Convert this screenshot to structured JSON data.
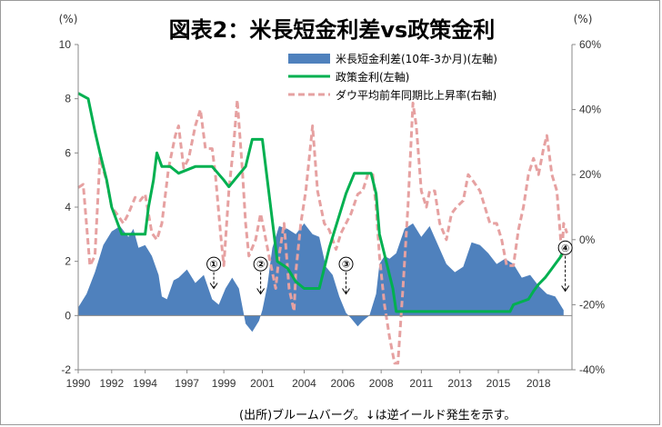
{
  "chart_data": {
    "type": "area+line",
    "title": "図表2：米長短金利差vs政策金利",
    "left_axis": {
      "unit": "(%)",
      "ylim": [
        -2,
        10
      ],
      "ticks": [
        -2,
        0,
        2,
        4,
        6,
        8,
        10
      ]
    },
    "right_axis": {
      "unit": "(%)",
      "ylim": [
        -40,
        60
      ],
      "ticks": [
        "-40%",
        "-20%",
        "0%",
        "20%",
        "40%",
        "60%"
      ],
      "tick_values": [
        -40,
        -20,
        0,
        20,
        40,
        60
      ]
    },
    "x_axis": {
      "xlim": [
        1990,
        2019.5
      ],
      "tick_labels": [
        "1990",
        "1992",
        "1994",
        "1997",
        "1999",
        "2001",
        "2004",
        "2006",
        "2008",
        "2011",
        "2013",
        "2015",
        "2018"
      ],
      "tick_positions": [
        1990,
        1992,
        1994,
        1996.5,
        1998.7,
        2001,
        2003.5,
        2005.8,
        2008.1,
        2010.5,
        2012.8,
        2015.1,
        2017.5
      ]
    },
    "series": [
      {
        "name": "米長短金利差(10年-3か月)(左軸)",
        "type": "area",
        "axis": "left",
        "color": "#4f81bd",
        "points": [
          [
            1990,
            0.3
          ],
          [
            1990.5,
            0.8
          ],
          [
            1991,
            1.6
          ],
          [
            1991.5,
            2.6
          ],
          [
            1992,
            3.1
          ],
          [
            1992.5,
            3.3
          ],
          [
            1993,
            2.9
          ],
          [
            1993.3,
            3.2
          ],
          [
            1993.6,
            2.5
          ],
          [
            1994,
            2.6
          ],
          [
            1994.4,
            2.2
          ],
          [
            1994.8,
            1.5
          ],
          [
            1995,
            0.7
          ],
          [
            1995.3,
            0.6
          ],
          [
            1995.7,
            1.3
          ],
          [
            1996,
            1.4
          ],
          [
            1996.5,
            1.7
          ],
          [
            1997,
            1.2
          ],
          [
            1997.5,
            1.5
          ],
          [
            1998,
            0.6
          ],
          [
            1998.4,
            0.4
          ],
          [
            1998.8,
            1.0
          ],
          [
            1999.2,
            1.4
          ],
          [
            1999.6,
            1.0
          ],
          [
            2000,
            -0.3
          ],
          [
            2000.4,
            -0.6
          ],
          [
            2000.8,
            -0.2
          ],
          [
            2001,
            0.2
          ],
          [
            2001.3,
            1.1
          ],
          [
            2001.6,
            2.5
          ],
          [
            2002,
            3.3
          ],
          [
            2002.5,
            3.2
          ],
          [
            2003,
            3.0
          ],
          [
            2003.5,
            3.4
          ],
          [
            2004,
            3.0
          ],
          [
            2004.4,
            2.9
          ],
          [
            2004.8,
            1.8
          ],
          [
            2005.2,
            1.5
          ],
          [
            2005.6,
            0.7
          ],
          [
            2006,
            0.1
          ],
          [
            2006.3,
            -0.1
          ],
          [
            2006.7,
            -0.4
          ],
          [
            2007,
            -0.2
          ],
          [
            2007.4,
            0.0
          ],
          [
            2007.8,
            0.8
          ],
          [
            2008,
            1.9
          ],
          [
            2008.3,
            2.2
          ],
          [
            2008.6,
            2.1
          ],
          [
            2009,
            2.3
          ],
          [
            2009.5,
            3.2
          ],
          [
            2010,
            3.4
          ],
          [
            2010.5,
            2.9
          ],
          [
            2011,
            3.3
          ],
          [
            2011.5,
            2.6
          ],
          [
            2012,
            1.9
          ],
          [
            2012.5,
            1.6
          ],
          [
            2013,
            1.8
          ],
          [
            2013.5,
            2.7
          ],
          [
            2014,
            2.6
          ],
          [
            2014.5,
            2.3
          ],
          [
            2015,
            1.9
          ],
          [
            2015.5,
            2.1
          ],
          [
            2016,
            1.9
          ],
          [
            2016.5,
            1.4
          ],
          [
            2017,
            1.5
          ],
          [
            2017.5,
            1.1
          ],
          [
            2018,
            0.8
          ],
          [
            2018.5,
            0.7
          ],
          [
            2019,
            0.2
          ]
        ]
      },
      {
        "name": "政策金利(左軸)",
        "type": "step-line",
        "axis": "left",
        "color": "#00b050",
        "points": [
          [
            1990,
            8.2
          ],
          [
            1990.6,
            8.0
          ],
          [
            1991,
            6.8
          ],
          [
            1991.3,
            6.0
          ],
          [
            1991.7,
            5.0
          ],
          [
            1992,
            4.0
          ],
          [
            1992.3,
            3.5
          ],
          [
            1992.6,
            3.0
          ],
          [
            1993,
            3.0
          ],
          [
            1994,
            3.0
          ],
          [
            1994.2,
            4.0
          ],
          [
            1994.5,
            5.0
          ],
          [
            1994.7,
            6.0
          ],
          [
            1995,
            5.5
          ],
          [
            1995.5,
            5.5
          ],
          [
            1996,
            5.25
          ],
          [
            1997,
            5.5
          ],
          [
            1998,
            5.5
          ],
          [
            1998.7,
            5.0
          ],
          [
            1999,
            4.75
          ],
          [
            1999.6,
            5.2
          ],
          [
            2000,
            5.5
          ],
          [
            2000.4,
            6.5
          ],
          [
            2001,
            6.5
          ],
          [
            2001.3,
            5.0
          ],
          [
            2001.6,
            3.5
          ],
          [
            2001.9,
            2.0
          ],
          [
            2002.5,
            1.75
          ],
          [
            2003,
            1.25
          ],
          [
            2003.5,
            1.0
          ],
          [
            2004.4,
            1.0
          ],
          [
            2004.7,
            1.75
          ],
          [
            2005,
            2.5
          ],
          [
            2005.5,
            3.5
          ],
          [
            2006,
            4.5
          ],
          [
            2006.5,
            5.25
          ],
          [
            2007.5,
            5.25
          ],
          [
            2007.8,
            4.5
          ],
          [
            2008,
            3.0
          ],
          [
            2008.4,
            2.0
          ],
          [
            2008.8,
            1.0
          ],
          [
            2009,
            0.15
          ],
          [
            2015.8,
            0.15
          ],
          [
            2016,
            0.4
          ],
          [
            2016.9,
            0.6
          ],
          [
            2017.2,
            0.9
          ],
          [
            2017.5,
            1.15
          ],
          [
            2017.9,
            1.4
          ],
          [
            2018.2,
            1.65
          ],
          [
            2018.5,
            1.9
          ],
          [
            2018.8,
            2.15
          ],
          [
            2019,
            2.4
          ]
        ]
      },
      {
        "name": "ダウ平均前年同期比上昇率(右軸)",
        "type": "line",
        "axis": "right",
        "dash": "dashed",
        "color": "#e6a1a1",
        "points": [
          [
            1990,
            16
          ],
          [
            1990.3,
            17
          ],
          [
            1990.7,
            -8
          ],
          [
            1991,
            -5
          ],
          [
            1991.3,
            25
          ],
          [
            1991.7,
            18
          ],
          [
            1992,
            10
          ],
          [
            1992.3,
            8
          ],
          [
            1992.7,
            5
          ],
          [
            1993,
            8
          ],
          [
            1993.4,
            13
          ],
          [
            1993.7,
            12
          ],
          [
            1994,
            14
          ],
          [
            1994.4,
            2
          ],
          [
            1994.7,
            0
          ],
          [
            1995,
            5
          ],
          [
            1995.4,
            22
          ],
          [
            1995.8,
            32
          ],
          [
            1996,
            35
          ],
          [
            1996.3,
            22
          ],
          [
            1996.6,
            25
          ],
          [
            1997,
            35
          ],
          [
            1997.3,
            40
          ],
          [
            1997.6,
            28
          ],
          [
            1998,
            28
          ],
          [
            1998.2,
            20
          ],
          [
            1998.5,
            2
          ],
          [
            1998.7,
            -8
          ],
          [
            1999,
            15
          ],
          [
            1999.3,
            30
          ],
          [
            1999.5,
            43
          ],
          [
            1999.8,
            22
          ],
          [
            2000,
            5
          ],
          [
            2000.2,
            -5
          ],
          [
            2000.6,
            0
          ],
          [
            2000.9,
            8
          ],
          [
            2001.1,
            3
          ],
          [
            2001.4,
            -5
          ],
          [
            2001.8,
            -15
          ],
          [
            2002,
            -5
          ],
          [
            2002.3,
            5
          ],
          [
            2002.6,
            -15
          ],
          [
            2002.9,
            -22
          ],
          [
            2003,
            -10
          ],
          [
            2003.3,
            5
          ],
          [
            2003.6,
            15
          ],
          [
            2003.9,
            30
          ],
          [
            2004,
            35
          ],
          [
            2004.3,
            15
          ],
          [
            2004.7,
            5
          ],
          [
            2005,
            3
          ],
          [
            2005.4,
            -3
          ],
          [
            2005.7,
            2
          ],
          [
            2006,
            5
          ],
          [
            2006.3,
            8
          ],
          [
            2006.7,
            14
          ],
          [
            2007,
            15
          ],
          [
            2007.3,
            20
          ],
          [
            2007.6,
            20
          ],
          [
            2007.8,
            10
          ],
          [
            2008,
            -5
          ],
          [
            2008.3,
            -20
          ],
          [
            2008.6,
            -30
          ],
          [
            2008.9,
            -38
          ],
          [
            2009.1,
            -38
          ],
          [
            2009.4,
            -15
          ],
          [
            2009.7,
            10
          ],
          [
            2010,
            42
          ],
          [
            2010.2,
            35
          ],
          [
            2010.5,
            15
          ],
          [
            2010.8,
            10
          ],
          [
            2011,
            15
          ],
          [
            2011.3,
            15
          ],
          [
            2011.6,
            5
          ],
          [
            2012,
            0
          ],
          [
            2012.3,
            8
          ],
          [
            2012.6,
            10
          ],
          [
            2013,
            12
          ],
          [
            2013.3,
            20
          ],
          [
            2013.6,
            18
          ],
          [
            2014,
            15
          ],
          [
            2014.3,
            10
          ],
          [
            2014.6,
            5
          ],
          [
            2015,
            5
          ],
          [
            2015.3,
            0
          ],
          [
            2015.6,
            -8
          ],
          [
            2016,
            -8
          ],
          [
            2016.3,
            3
          ],
          [
            2016.6,
            10
          ],
          [
            2016.9,
            20
          ],
          [
            2017.2,
            25
          ],
          [
            2017.5,
            20
          ],
          [
            2017.8,
            28
          ],
          [
            2018,
            32
          ],
          [
            2018.3,
            20
          ],
          [
            2018.6,
            15
          ],
          [
            2018.9,
            -5
          ],
          [
            2019,
            5
          ],
          [
            2019.2,
            2
          ]
        ]
      }
    ],
    "markers": [
      {
        "label": "①",
        "x": 1998.1,
        "y_top": 1.9,
        "y_bottom": 1.0
      },
      {
        "label": "②",
        "x": 2000.9,
        "y_top": 1.9,
        "y_bottom": 0.8
      },
      {
        "label": "③",
        "x": 2006.0,
        "y_top": 1.9,
        "y_bottom": 0.8
      },
      {
        "label": "④",
        "x": 2019.1,
        "y_top": 2.5,
        "y_bottom": 0.9
      }
    ],
    "legend": {
      "position": "top-right"
    },
    "grid": false
  },
  "source_note": "(出所)ブルームバーグ。↓は逆イールド発生を示す。"
}
